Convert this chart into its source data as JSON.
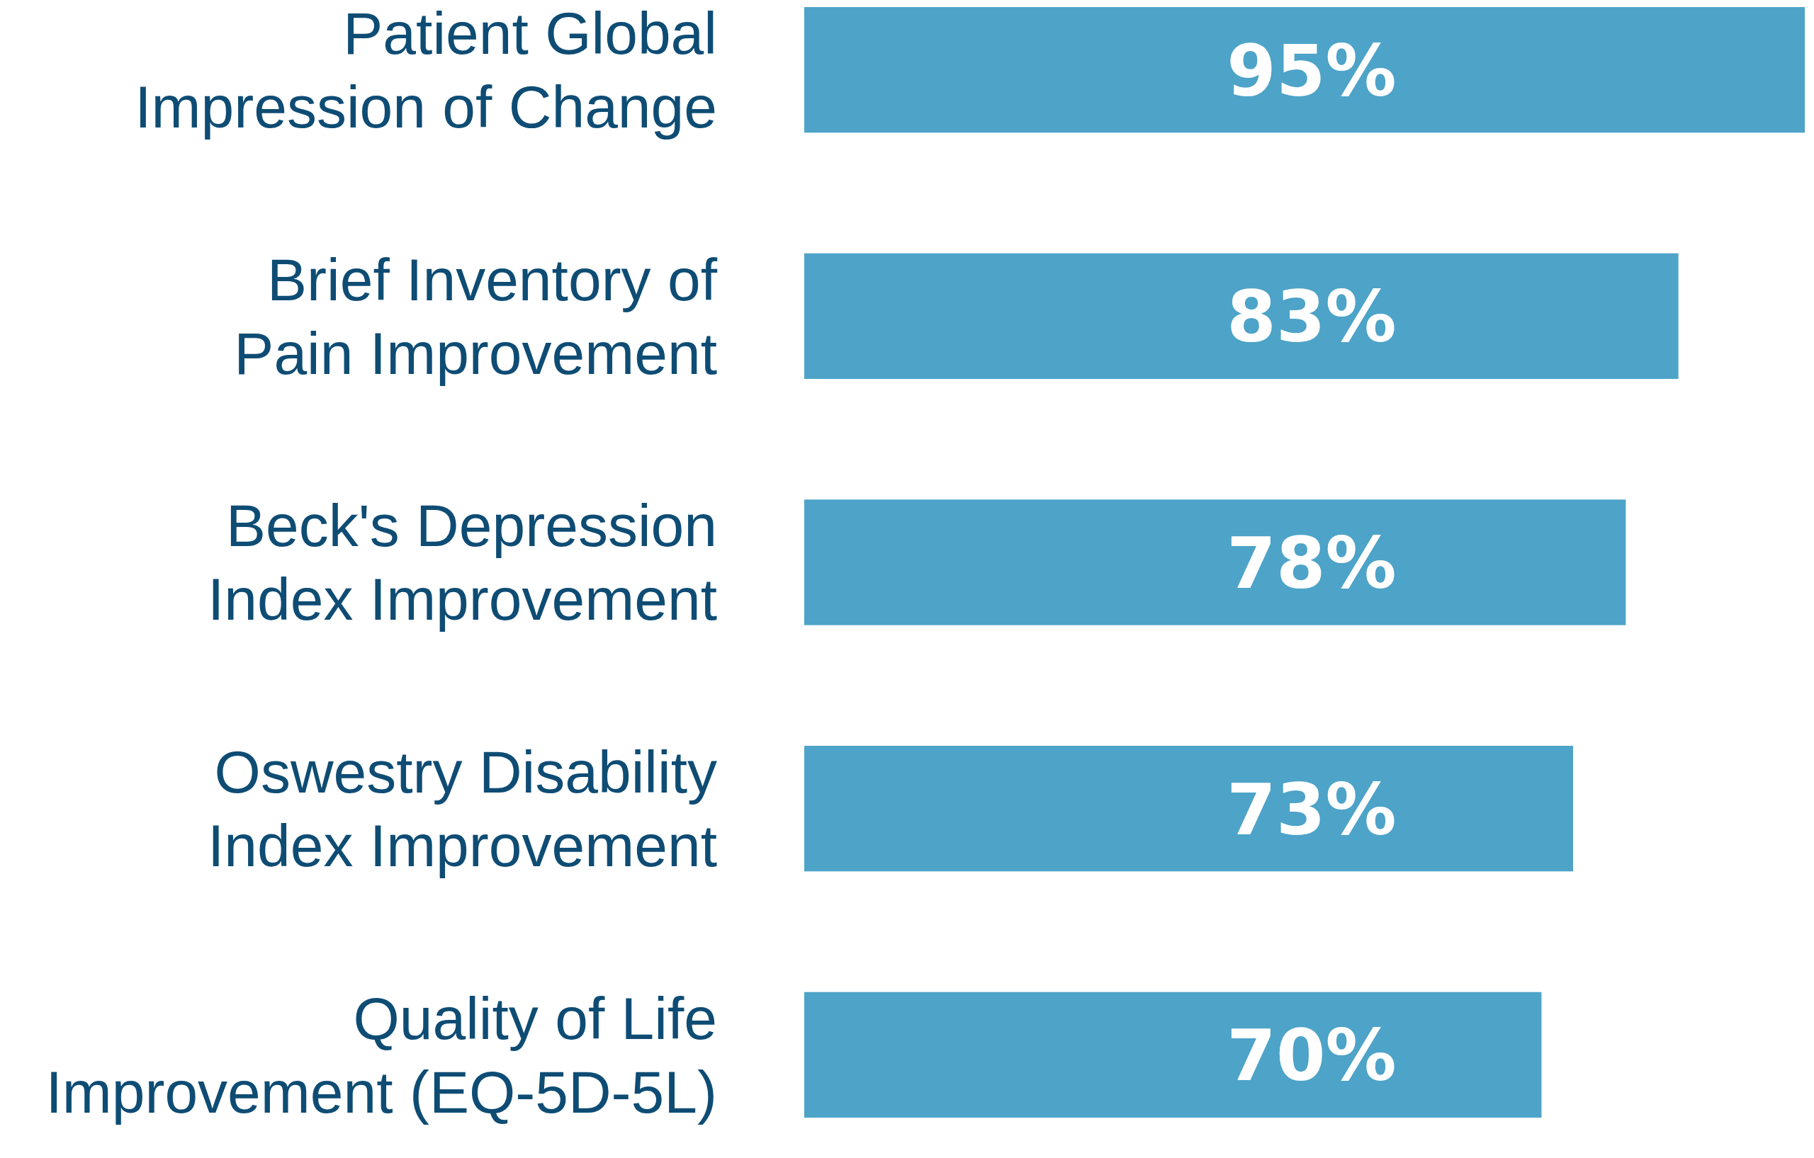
{
  "chart_data": {
    "type": "bar",
    "orientation": "horizontal",
    "categories": [
      "Patient Global\nImpression of Change",
      "Brief Inventory of\nPain Improvement",
      "Beck's Depression\nIndex Improvement",
      "Oswestry Disability\nIndex Improvement",
      "Quality of Life\nImprovement (EQ-5D-5L)"
    ],
    "values": [
      95,
      83,
      78,
      73,
      70
    ],
    "value_labels": [
      "95%",
      "83%",
      "78%",
      "73%",
      "70%"
    ],
    "color": "#4da3c8"
  }
}
